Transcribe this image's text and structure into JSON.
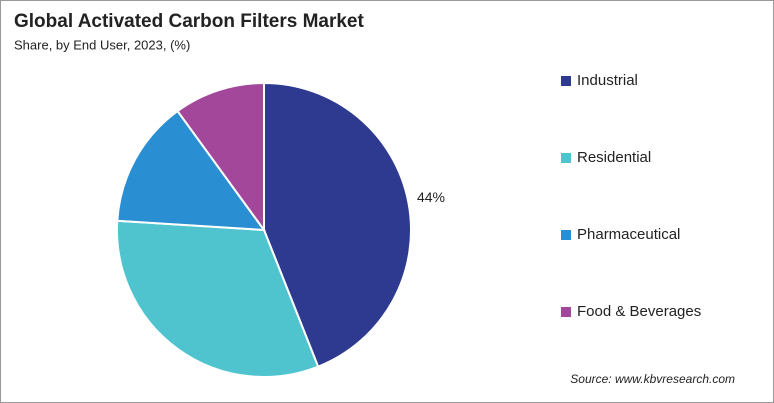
{
  "chart_data": {
    "type": "pie",
    "title": "Global Activated Carbon Filters Market",
    "subtitle": "Share, by End User, 2023, (%)",
    "categories": [
      "Industrial",
      "Residential",
      "Pharmaceutical",
      "Food & Beverages"
    ],
    "values": [
      44,
      32,
      14,
      10
    ],
    "value_labels": [
      "44%",
      null,
      null,
      null
    ],
    "colors": [
      "#2e3a8f",
      "#4fc4cf",
      "#2a8fd2",
      "#a3479b"
    ],
    "source": "Source: www.kbvresearch.com"
  }
}
